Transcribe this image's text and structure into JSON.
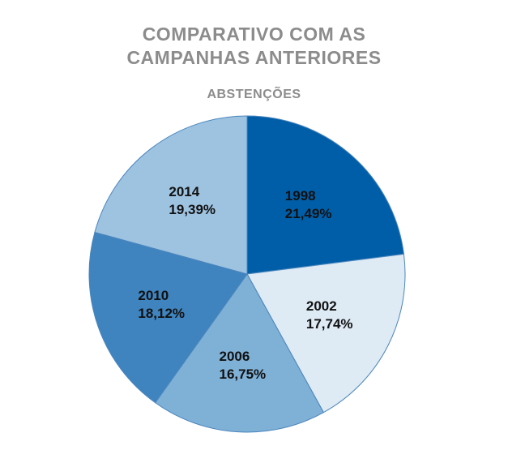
{
  "chart_data": {
    "type": "pie",
    "title": "COMPARATIVO COM AS CAMPANHAS ANTERIORES",
    "title_lines": [
      "COMPARATIVO COM AS",
      "CAMPANHAS ANTERIORES"
    ],
    "subtitle": "ABSTENÇÕES",
    "categories": [
      "1998",
      "2002",
      "2006",
      "2010",
      "2014"
    ],
    "values": [
      21.49,
      17.74,
      16.75,
      18.12,
      19.39
    ],
    "value_labels": [
      "21,49%",
      "17,74%",
      "16,75%",
      "18,12%",
      "19,39%"
    ],
    "colors": [
      "#005ea8",
      "#deeaf4",
      "#7fb0d6",
      "#3f84bf",
      "#9ec3e1"
    ],
    "start": "12 o'clock, clockwise",
    "legend": "none"
  }
}
